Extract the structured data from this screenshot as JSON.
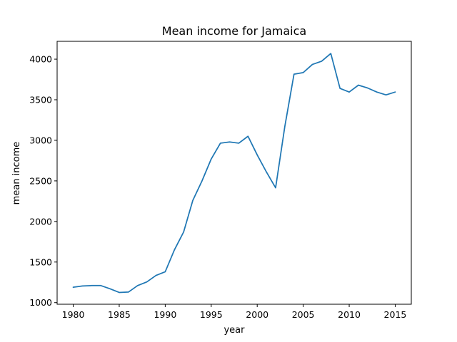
{
  "chart_data": {
    "type": "line",
    "title": "Mean income for Jamaica",
    "xlabel": "year",
    "ylabel": "mean income",
    "xlim": [
      1978.25,
      2016.75
    ],
    "ylim": [
      980,
      4220
    ],
    "xticks": [
      1980,
      1985,
      1990,
      1995,
      2000,
      2005,
      2010,
      2015
    ],
    "yticks": [
      1000,
      1500,
      2000,
      2500,
      3000,
      3500,
      4000
    ],
    "grid": false,
    "legend": "none",
    "series": [
      {
        "color": "#1f77b4",
        "x": [
          1980,
          1981,
          1982,
          1983,
          1984,
          1985,
          1986,
          1987,
          1988,
          1989,
          1990,
          1991,
          1992,
          1993,
          1994,
          1995,
          1996,
          1997,
          1998,
          1999,
          2000,
          2001,
          2002,
          2003,
          2004,
          2005,
          2006,
          2007,
          2008,
          2009,
          2010,
          2011,
          2012,
          2013,
          2014,
          2015
        ],
        "y": [
          1190,
          1205,
          1210,
          1210,
          1170,
          1125,
          1130,
          1210,
          1255,
          1335,
          1380,
          1650,
          1870,
          2260,
          2500,
          2770,
          2965,
          2980,
          2965,
          3050,
          2820,
          2610,
          2415,
          3170,
          3815,
          3835,
          3935,
          3975,
          4070,
          3640,
          3595,
          3680,
          3645,
          3595,
          3560,
          3595
        ]
      }
    ]
  }
}
